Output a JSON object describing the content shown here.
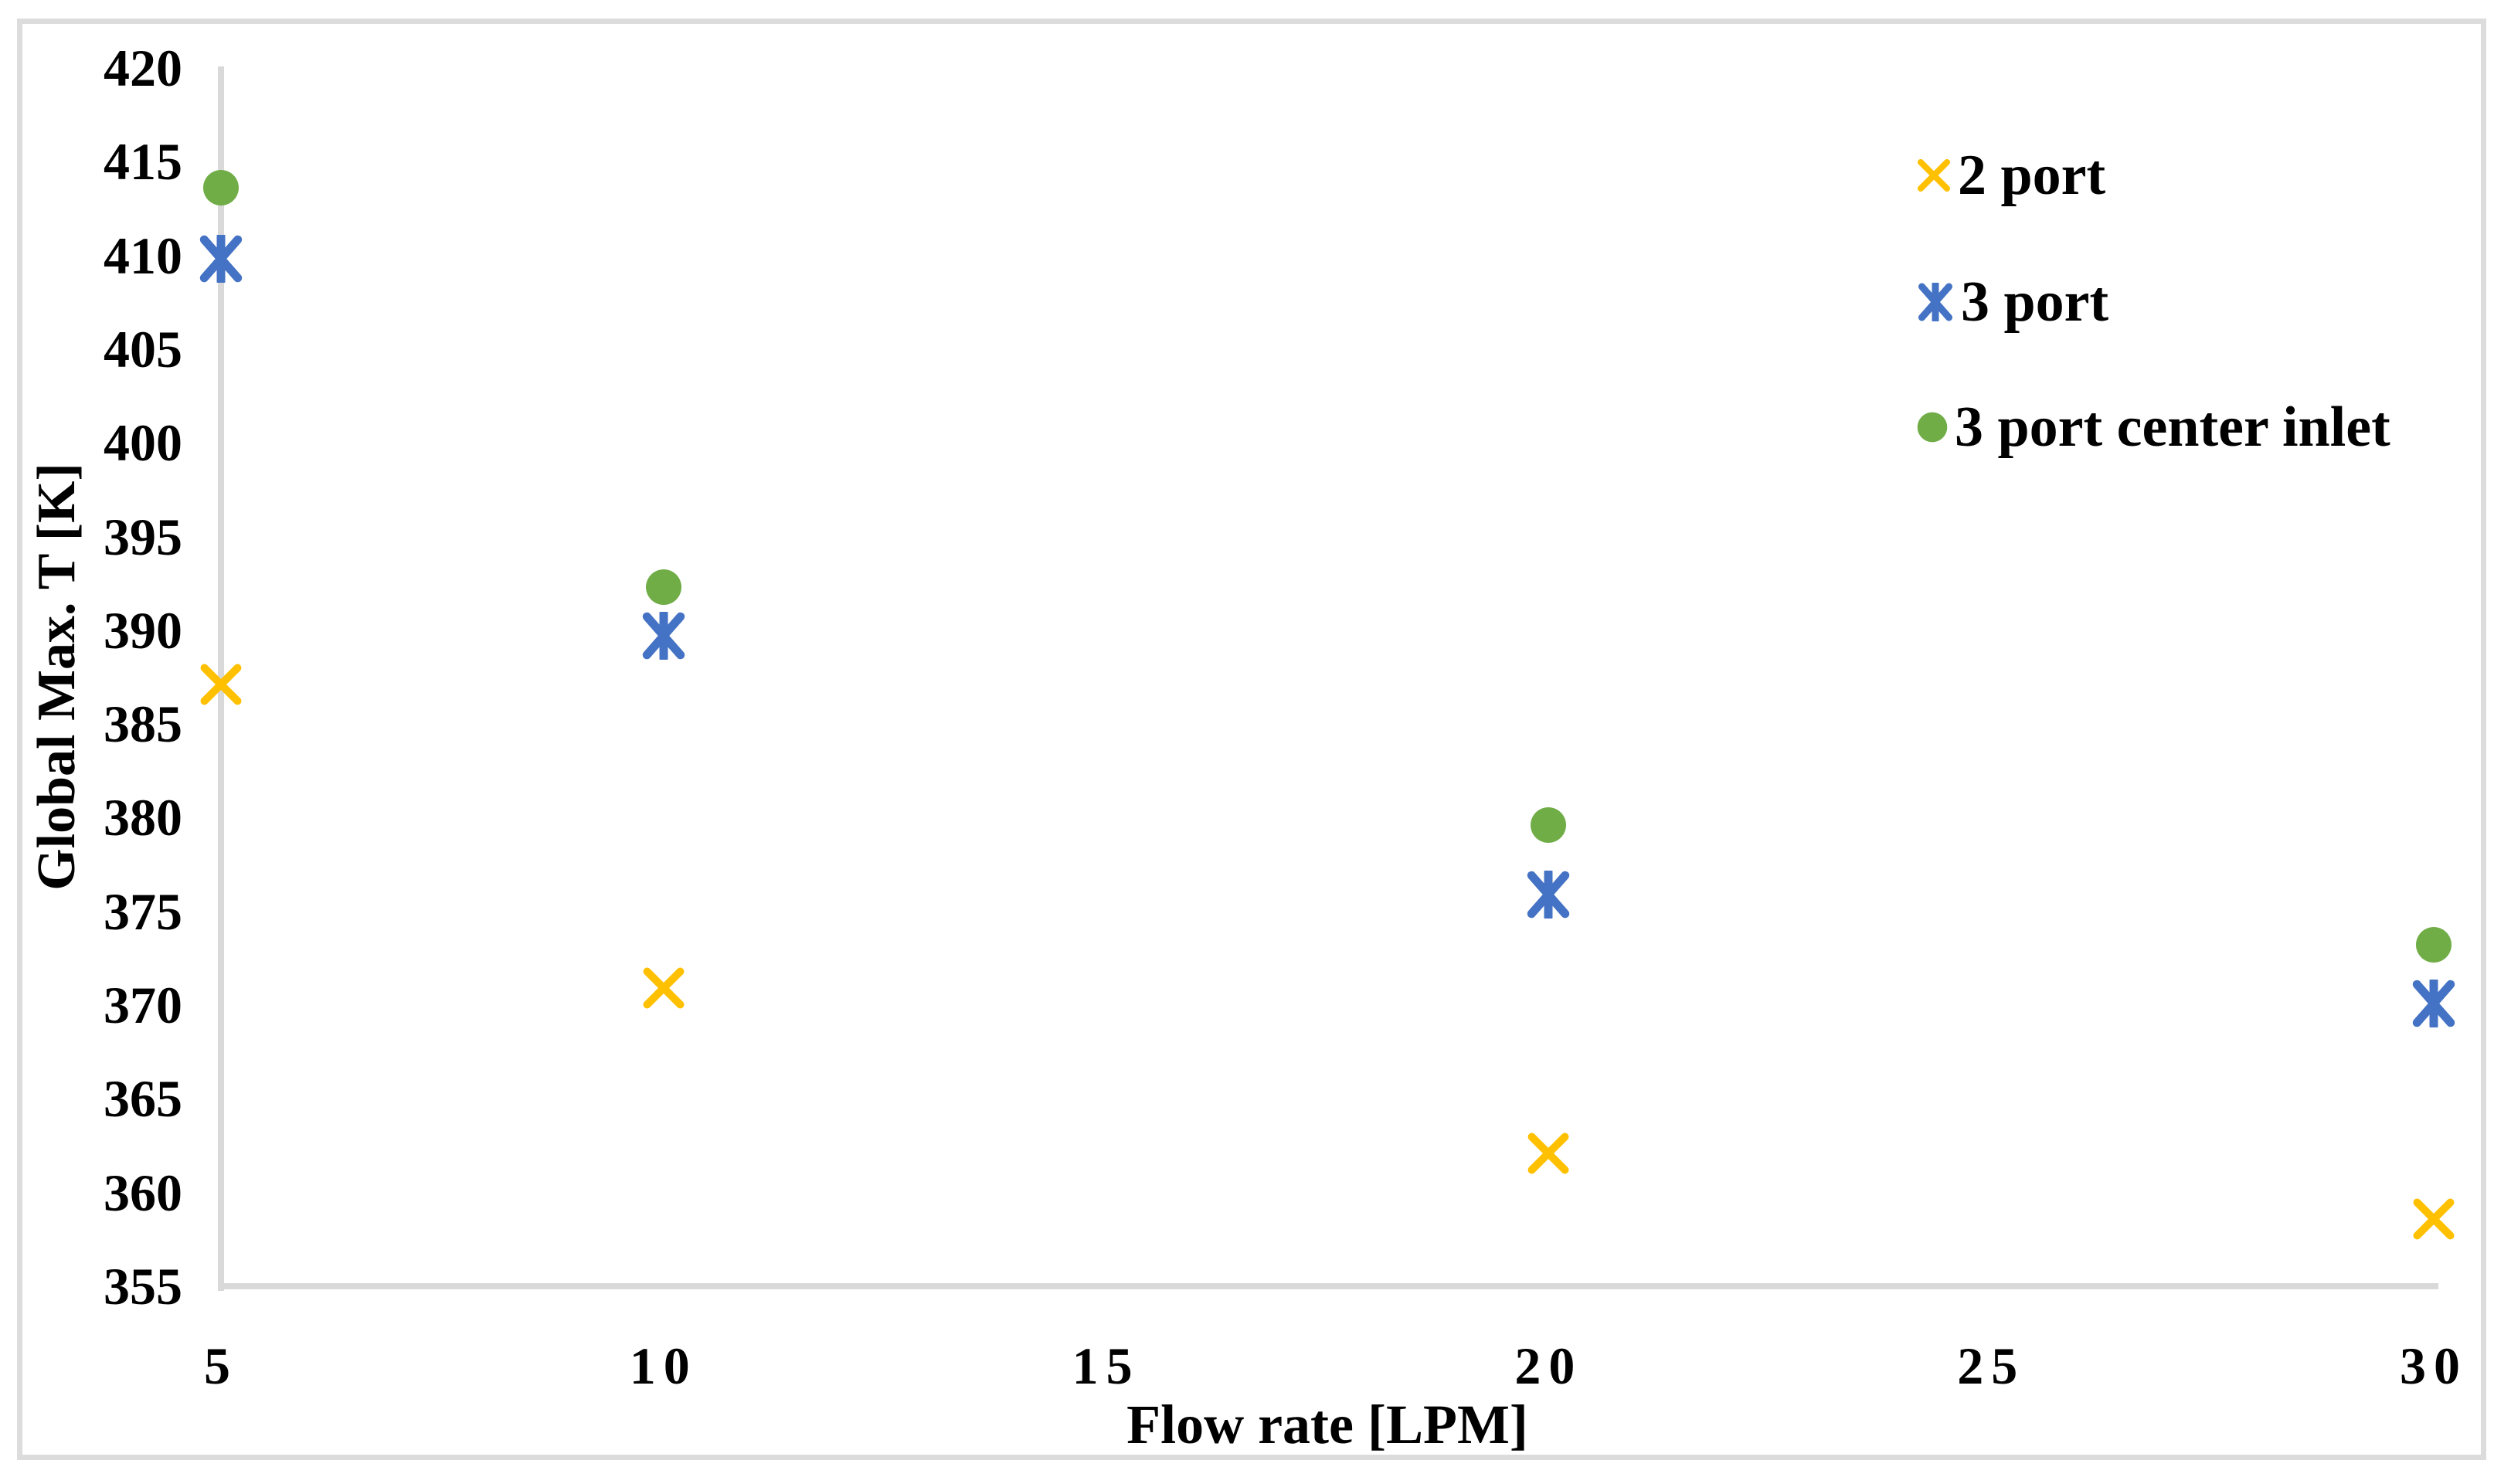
{
  "chart_data": {
    "type": "scatter",
    "xlabel": "Flow rate [LPM]",
    "ylabel": "Global Max. T [K]",
    "x": [
      5,
      10,
      20,
      30
    ],
    "xticks": [
      5,
      10,
      15,
      20,
      25,
      30
    ],
    "yticks": [
      420,
      415,
      410,
      405,
      400,
      395,
      390,
      385,
      380,
      375,
      370,
      365,
      360,
      355
    ],
    "xlim": [
      5,
      30
    ],
    "ylim": [
      355,
      420
    ],
    "grid": false,
    "legend_position": "upper-right-inside",
    "axis_color": "#D9D9D9",
    "text_color": "#000000",
    "series": [
      {
        "name": "2 port",
        "marker": "x",
        "color": "#FFC000",
        "values": [
          387.1,
          370.9,
          362.1,
          358.6
        ]
      },
      {
        "name": "3 port",
        "marker": "asterisk",
        "color": "#4472C4",
        "values": [
          409.8,
          389.7,
          375.9,
          370.1
        ]
      },
      {
        "name": "3 port center inlet",
        "marker": "circle",
        "color": "#70AD47",
        "values": [
          413.6,
          392.3,
          379.6,
          373.2
        ]
      }
    ]
  }
}
